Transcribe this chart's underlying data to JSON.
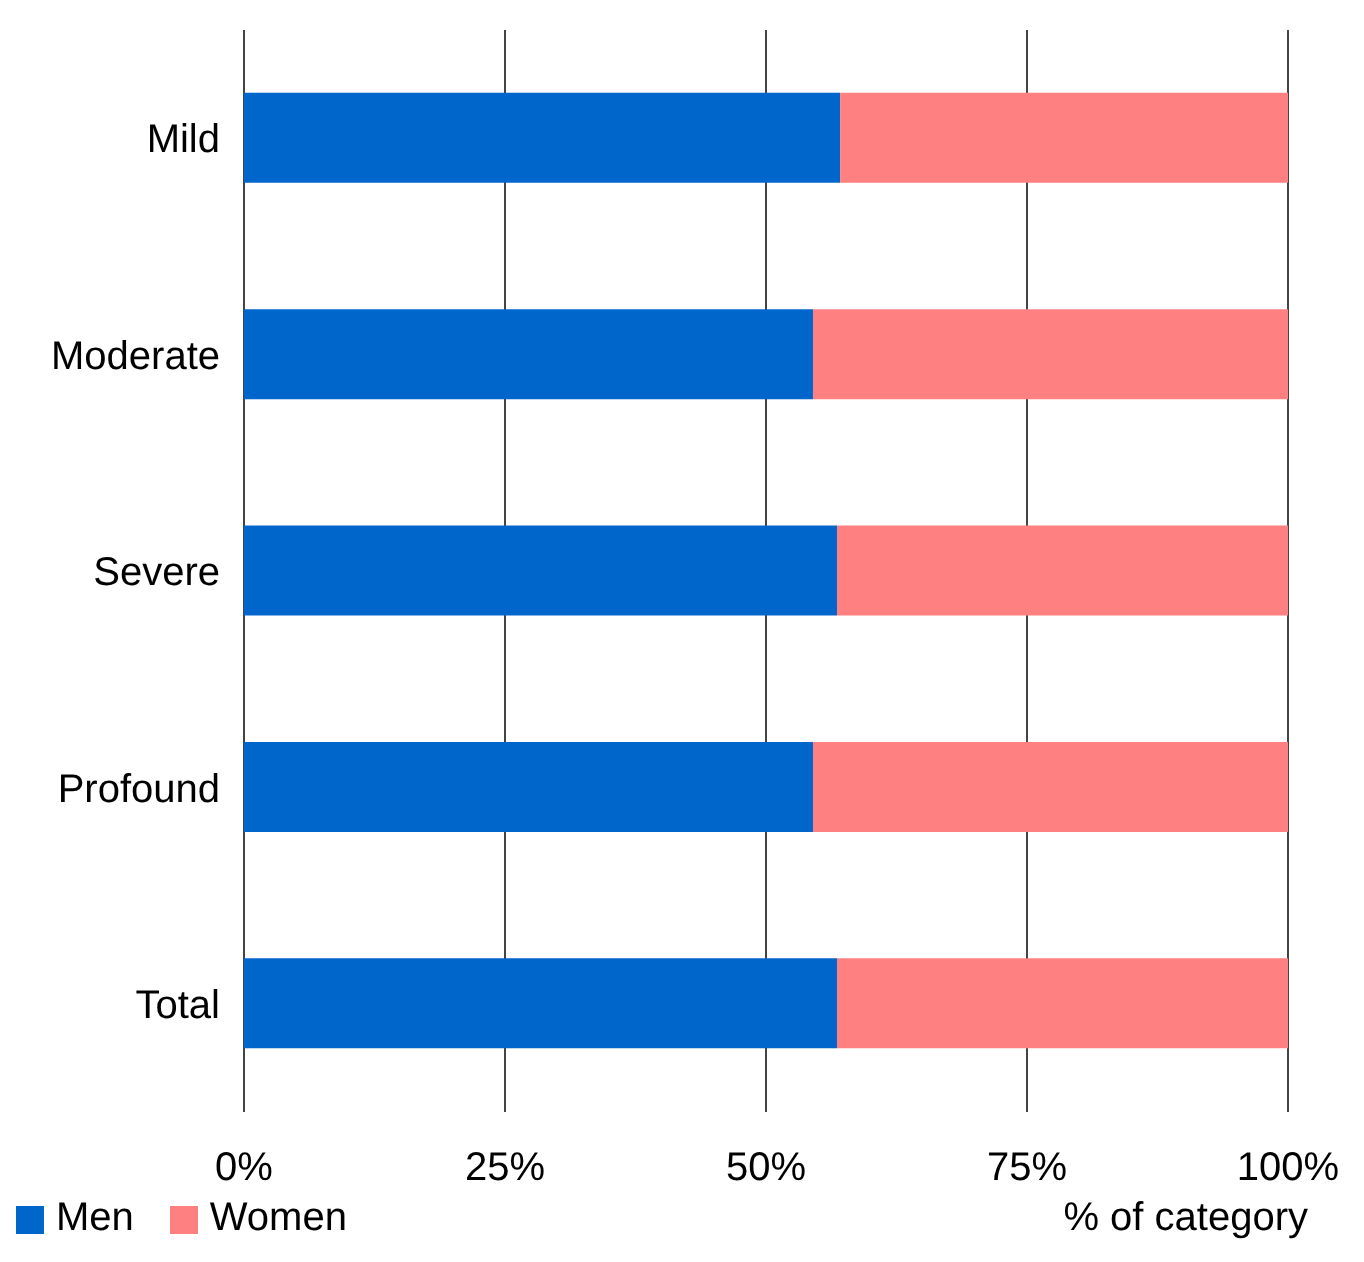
{
  "chart_data": {
    "type": "bar",
    "orientation": "horizontal",
    "stacked": true,
    "categories": [
      "Mild",
      "Moderate",
      "Severe",
      "Profound",
      "Total"
    ],
    "series": [
      {
        "name": "Men",
        "color": "#0066cc",
        "values": [
          57.1,
          54.5,
          56.8,
          54.5,
          56.8
        ]
      },
      {
        "name": "Women",
        "color": "#ff8080",
        "values": [
          42.9,
          45.5,
          43.2,
          45.5,
          43.2
        ]
      }
    ],
    "xlim": [
      0,
      100
    ],
    "xticks": [
      {
        "value": 0,
        "label": "0%"
      },
      {
        "value": 25,
        "label": "25%"
      },
      {
        "value": 50,
        "label": "50%"
      },
      {
        "value": 75,
        "label": "75%"
      },
      {
        "value": 100,
        "label": "100%"
      }
    ],
    "xlabel": "% of category",
    "grid": "x",
    "legend": "bottom left"
  }
}
